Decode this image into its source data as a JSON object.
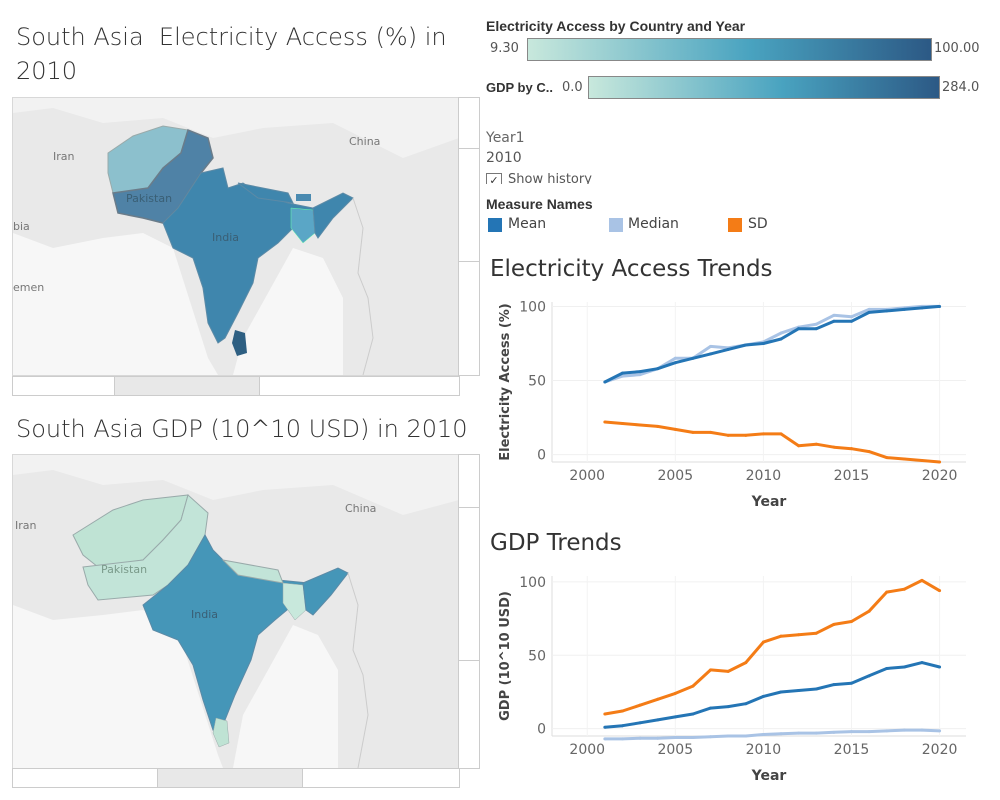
{
  "map1": {
    "title_line1": "South Asia  Electricity Access (%) in",
    "title_line2": "2010",
    "labels": {
      "iran": "Iran",
      "china": "China",
      "india": "India",
      "pakistan": "Pakistan",
      "arabia": "bia",
      "yemen": "emen"
    }
  },
  "map2": {
    "title": "South Asia GDP (10^10 USD) in 2010",
    "labels": {
      "iran": "Iran",
      "china": "China",
      "india": "India",
      "pakistan": "Pakistan"
    }
  },
  "legend_elec": {
    "title": "Electricity Access by Country and Year",
    "min": "9.30",
    "max": "100.00",
    "color_low": "#c8e8dc",
    "color_mid": "#49a3c0",
    "color_high": "#2c5985"
  },
  "legend_gdp": {
    "title": "GDP by C..",
    "min": "0.0",
    "max": "284.0"
  },
  "year_filter": {
    "label": "Year1",
    "value": "2010",
    "show_history": "Show history"
  },
  "measure_legend": {
    "title": "Measure Names",
    "items": [
      {
        "label": "Mean",
        "color": "#2475b5"
      },
      {
        "label": "Median",
        "color": "#a9c3e5"
      },
      {
        "label": "SD",
        "color": "#f47c16"
      }
    ]
  },
  "chart_data": [
    {
      "type": "line",
      "title": "Electricity Access Trends",
      "xlabel": "Year",
      "ylabel": "Electricity Access (%)",
      "xlim": [
        1998,
        2021.5
      ],
      "ylim": [
        -5,
        103
      ],
      "xticks": [
        2000,
        2005,
        2010,
        2015,
        2020
      ],
      "yticks": [
        0,
        50,
        100
      ],
      "x": [
        2001,
        2002,
        2003,
        2004,
        2005,
        2006,
        2007,
        2008,
        2009,
        2010,
        2011,
        2012,
        2013,
        2014,
        2015,
        2016,
        2017,
        2018,
        2019,
        2020
      ],
      "series": [
        {
          "name": "Median",
          "color": "#a9c3e5",
          "values": [
            49,
            53,
            54,
            58,
            65,
            65,
            73,
            72,
            74,
            76,
            82,
            86,
            88,
            94,
            93,
            98,
            98,
            99,
            100,
            100
          ]
        },
        {
          "name": "Mean",
          "color": "#2475b5",
          "values": [
            49,
            55,
            56,
            58,
            62,
            65,
            68,
            71,
            74,
            75,
            78,
            85,
            85,
            90,
            90,
            96,
            97,
            98,
            99,
            100
          ]
        },
        {
          "name": "SD",
          "color": "#f47c16",
          "values": [
            22,
            21,
            20,
            19,
            17,
            15,
            15,
            13,
            13,
            14,
            14,
            6,
            7,
            5,
            4,
            2,
            -2,
            -3,
            -4,
            -5
          ]
        }
      ]
    },
    {
      "type": "line",
      "title": "GDP Trends",
      "xlabel": "Year",
      "ylabel": "GDP (10^10 USD)",
      "xlim": [
        1998,
        2021.5
      ],
      "ylim": [
        -5,
        104
      ],
      "xticks": [
        2000,
        2005,
        2010,
        2015,
        2020
      ],
      "yticks": [
        0,
        50,
        100
      ],
      "x": [
        2001,
        2002,
        2003,
        2004,
        2005,
        2006,
        2007,
        2008,
        2009,
        2010,
        2011,
        2012,
        2013,
        2014,
        2015,
        2016,
        2017,
        2018,
        2019,
        2020
      ],
      "series": [
        {
          "name": "Median",
          "color": "#a9c3e5",
          "values": [
            -7,
            -7,
            -6.5,
            -6.5,
            -6,
            -6,
            -5.5,
            -5,
            -5,
            -4,
            -3.5,
            -3,
            -3,
            -2.5,
            -2,
            -2,
            -1.5,
            -1,
            -1,
            -1.5
          ]
        },
        {
          "name": "Mean",
          "color": "#2475b5",
          "values": [
            1,
            2,
            4,
            6,
            8,
            10,
            14,
            15,
            17,
            22,
            25,
            26,
            27,
            30,
            31,
            36,
            41,
            42,
            45,
            42
          ]
        },
        {
          "name": "SD",
          "color": "#f47c16",
          "values": [
            10,
            12,
            16,
            20,
            24,
            29,
            40,
            39,
            45,
            59,
            63,
            64,
            65,
            71,
            73,
            80,
            93,
            95,
            101,
            94
          ]
        }
      ]
    }
  ]
}
